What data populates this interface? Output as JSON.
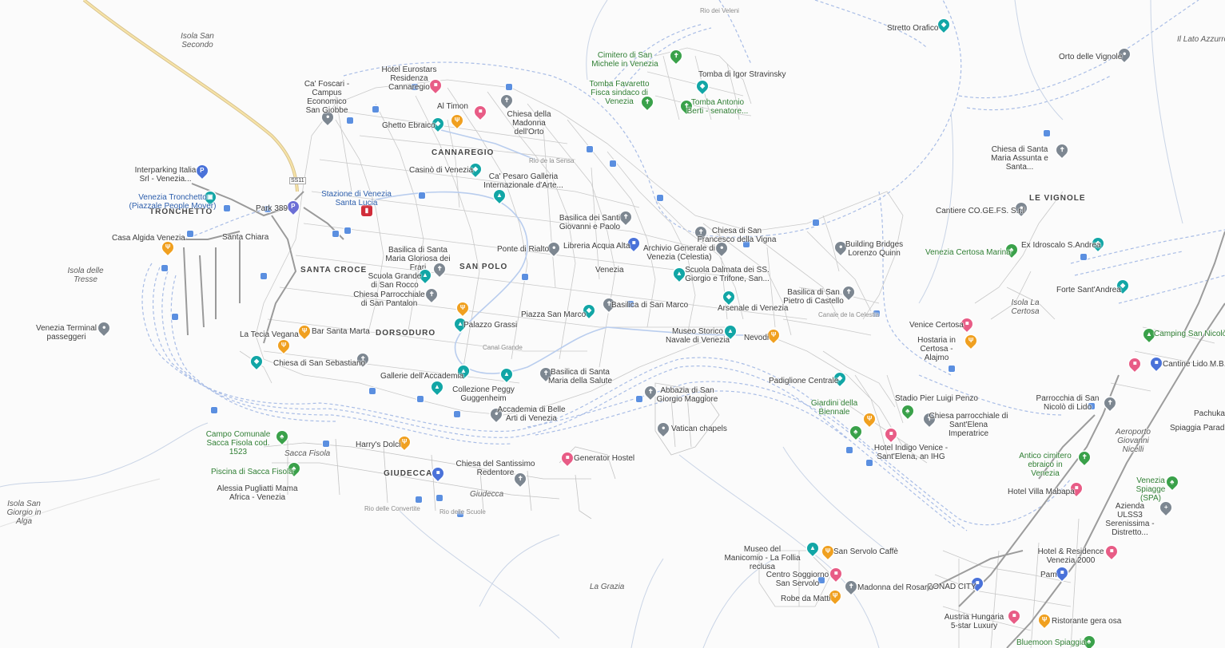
{
  "colors": {
    "water_line": "#a9bde6",
    "street": "#c7c7c7",
    "main_road": "#9a9a9a",
    "highway": "#f1d88c",
    "transit": "#5b8fe0",
    "pin_gray": "#7d8791",
    "pin_teal": "#12a6a6",
    "pin_pink": "#e85c86",
    "pin_orange": "#f0a020",
    "pin_green": "#3aa14a",
    "pin_blue": "#4a72d9",
    "park_text": "#2e7d32"
  },
  "road_badge": "SS11",
  "areas": {
    "cannaregio": "CANNAREGIO",
    "tronchetto": "TRONCHETTO",
    "santa_croce": "SANTA CROCE",
    "san_polo": "SAN POLO",
    "dorsoduro": "DORSODURO",
    "giudecca": "GIUDECCA",
    "le_vignole": "LE VIGNOLE",
    "venezia": "Venezia",
    "santa_chiara": "Santa Chiara"
  },
  "islands": {
    "san_secondo": "Isola San Secondo",
    "tresse": "Isola delle Tresse",
    "san_giorgio_alga": "Isola San Giorgio in Alga",
    "la_grazia": "La Grazia",
    "certosa": "Isola La Certosa",
    "lato_azzurro": "Il Lato Azzurro",
    "sacca_fisola": "Sacca Fisola",
    "giudecca": "Giudecca",
    "aeroporto": "Aeroporto Giovanni Nicelli"
  },
  "places": {
    "cafoscari": "Ca' Foscari - Campus Economico San Giobbe",
    "hotel_eurostars": "Hotel Eurostars Residenza Cannaregio",
    "al_timon": "Al Timon",
    "ghetto": "Ghetto Ebraico",
    "madonna_orto": "Chiesa della Madonna dell'Orto",
    "casino": "Casinò di Venezia",
    "ca_pesaro": "Ca' Pesaro Galleria Internazionale d'Arte...",
    "interparking": "Interparking Italia Srl - Venezia...",
    "people_mover": "Venezia Tronchetto (Piazzale People Mover)",
    "park_389": "Park 389",
    "stazione": "Stazione di Venezia Santa Lucia",
    "casa_algida": "Casa Algida Venezia",
    "frari": "Basilica di Santa Maria Gloriosa dei Frari",
    "san_rocco": "Scuola Grande di San Rocco",
    "san_pantalon": "Chiesa Parrocchiale di San Pantalon",
    "rialto": "Ponte di Rialto",
    "libreria": "Libreria Acqua Alta",
    "archivio": "Archivio Generale di Venezia (Celestia)",
    "giovanni_paolo": "Basilica dei Santi Giovanni e Paolo",
    "san_francesco": "Chiesa di San Francesco della Vigna",
    "dalmata": "Scuola Dalmata dei SS. Giorgio e Trifone, San...",
    "piazza": "Piazza San Marco",
    "basilica_sm": "Basilica di San Marco",
    "arsenale": "Arsenale di Venezia",
    "museo_navale": "Museo Storico Navale di Venezia",
    "nevodi": "Nevodi",
    "palazzo_grassi": "Palazzo Grassi",
    "terminal": "Venezia Terminal passeggeri",
    "la_tecia": "La Tecia Vegana",
    "bar_santa": "Bar Santa Marta",
    "san_sebastiano": "Chiesa di San Sebastiano",
    "accademia": "Gallerie dell'Accademia",
    "peggy": "Collezione Peggy Guggenheim",
    "salute": "Basilica di Santa Maria della Salute",
    "accademia_belle": "Accademia di Belle Arti di Venezia",
    "san_giorgio": "Abbazia di San Giorgio Maggiore",
    "vatican": "Vatican chapels",
    "campo_sacca": "Campo Comunale Sacca Fisola cod. 1523",
    "harrys": "Harry's Dolci",
    "redentore": "Chiesa del Santissimo Redentore",
    "generator": "Generator Hostel",
    "piscina": "Piscina di Sacca Fisola",
    "alessia": "Alessia Pugliatti Mama Africa - Venezia",
    "padiglione": "Padiglione Centrale",
    "giardini": "Giardini della Biennale",
    "stadio": "Stadio Pier Luigi Penzo",
    "sant_elena": "Chiesa parrocchiale di Sant'Elena Imperatrice",
    "indigo": "Hotel Indigo Venice - Sant'Elena, an IHG",
    "san_pietro": "Basilica di San Pietro di Castello",
    "building_bridges": "Building Bridges Lorenzo Quinn",
    "cimitero": "Cimitero di San Michele in Venezia",
    "stravinsky": "Tomba di Igor Stravinsky",
    "favaretto": "Tomba Favaretto Fisca sindaco di Venezia",
    "berti": "Tomba Antonio Berti - senatore...",
    "stretto": "Stretto Orafico",
    "orto_vignole": "Orto delle Vignole",
    "santa_maria_assunta": "Chiesa di Santa Maria Assunta e Santa...",
    "cantiere": "Cantiere CO.GE.FS. S.r.l",
    "certosa_marina": "Venezia Certosa Marina",
    "sant_andrea": "Ex Idroscalo S.Andrea",
    "forte": "Forte Sant'Andrea",
    "vento_certosa": "Venice Certosa",
    "hostaria": "Hostaria in Certosa - Alajmo",
    "camping": "Camping San Nicolò",
    "cantine_lido": "Cantine Lido M.B.M",
    "parrocchia_nicolo": "Parrocchia di San Nicolò di Lido",
    "pachuka": "Pachuka",
    "spiaggia_paradiso": "Spiaggia Paradiso",
    "cimitero_ebraico": "Antico cimitero ebraico in Venezia",
    "villa_mabapa": "Hotel Villa Mabapa",
    "spiagge": "Venezia Spiagge (SPA)",
    "ulss": "Azienda ULSS3 Serenissima - Distretto...",
    "hotel_residence": "Hotel & Residence Venezia 2000",
    "pam": "Pam",
    "austria": "Austria Hungaria 5-star Luxury",
    "ristorante": "Ristorante gera osa",
    "bluemoon": "Bluemoon Spiaggia",
    "conad": "CONAD CITY",
    "manicomio": "Museo del Manicomio - La Follia reclusa",
    "san_servolo_caffe": "San Servolo Caffè",
    "centro_soggiorno": "Centro Soggiorno San Servolo",
    "madonna_rosario": "Madonna del Rosario",
    "robe_matti": "Robe da Matti"
  },
  "tiny": {
    "rio_veleni": "Rio dei Veleni",
    "rio_sensa": "Rio de la Sensa",
    "rio_convertite": "Rio delle Convertite",
    "rio_scuole": "Rio delle Scuole",
    "canal_grande": "Canal Grande",
    "canale_celestia": "Canale de la Celestia"
  }
}
